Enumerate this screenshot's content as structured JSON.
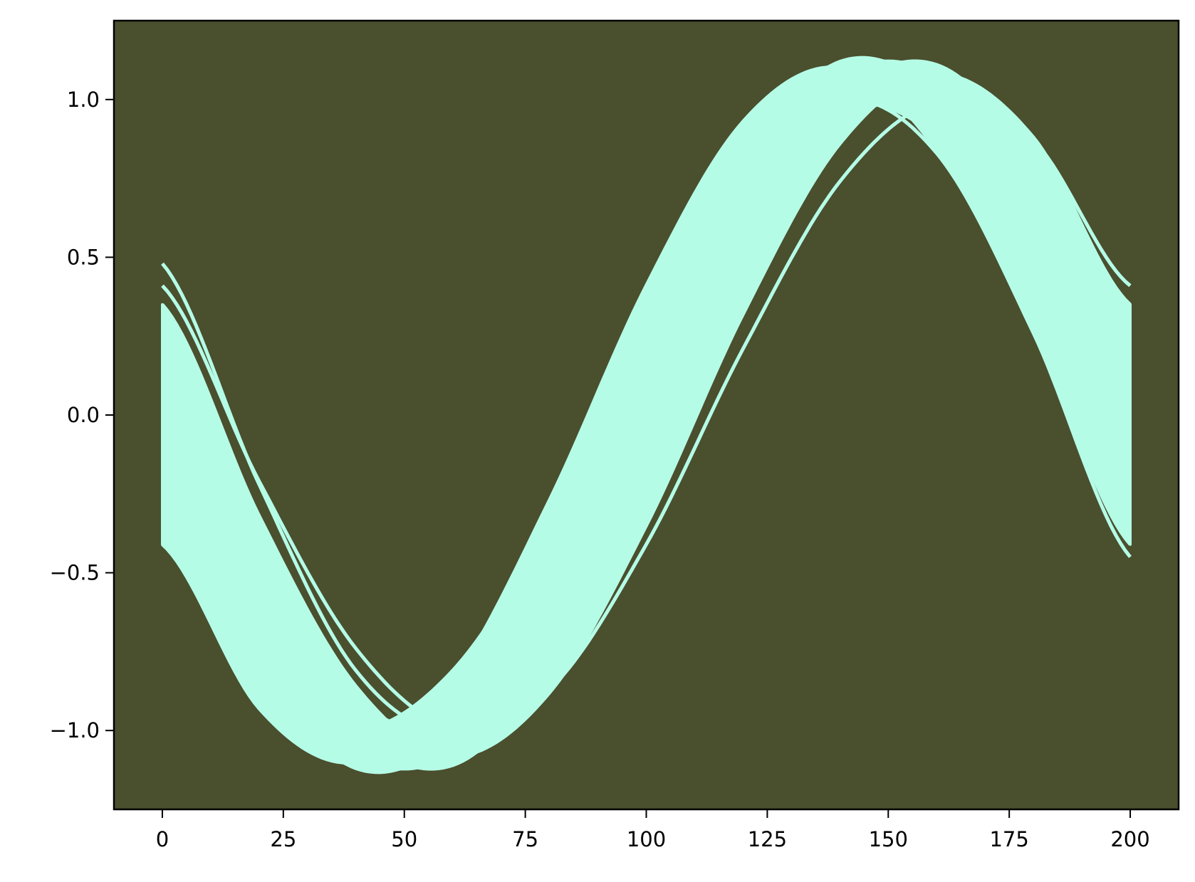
{
  "chart_data": {
    "type": "line",
    "title": "",
    "xlabel": "",
    "ylabel": "",
    "xlim": [
      -10,
      210
    ],
    "ylim": [
      -1.25,
      1.25
    ],
    "grid": false,
    "x_ticks": [
      0,
      25,
      50,
      75,
      100,
      125,
      150,
      175,
      200
    ],
    "x_tick_labels": [
      "0",
      "25",
      "50",
      "75",
      "100",
      "125",
      "150",
      "175",
      "200"
    ],
    "y_ticks": [
      -1.0,
      -0.5,
      0.0,
      0.5,
      1.0
    ],
    "y_tick_labels": [
      "−1.0",
      "−0.5",
      "0.0",
      "0.5",
      "1.0"
    ],
    "colors": {
      "background": "#4a4f2e",
      "line": "#b5fce7",
      "axes": "#000000"
    },
    "x": [
      0,
      20,
      40,
      60,
      80,
      100,
      120,
      140,
      160,
      180,
      200
    ],
    "series": [
      {
        "values": [
          0.48,
          -0.22,
          -0.81,
          -0.99,
          -0.68,
          -0.02,
          0.65,
          0.99,
          0.83,
          0.26,
          -0.45
        ]
      },
      {
        "values": [
          0.41,
          -0.21,
          -0.74,
          -0.99,
          -0.87,
          -0.41,
          0.21,
          0.74,
          0.99,
          0.87,
          0.41
        ]
      },
      {
        "values": [
          0.35,
          -0.32,
          -0.86,
          -1.08,
          -0.88,
          -0.35,
          0.32,
          0.86,
          1.08,
          0.88,
          0.35
        ]
      },
      {
        "values": [
          0.17,
          -0.52,
          -1.0,
          -1.11,
          -0.79,
          -0.17,
          0.52,
          1.0,
          1.11,
          0.79,
          0.17
        ]
      },
      {
        "values": [
          0.0,
          -0.66,
          -1.07,
          -1.07,
          -0.66,
          0.0,
          0.66,
          1.07,
          1.07,
          0.66,
          0.0
        ]
      },
      {
        "values": [
          -0.17,
          -0.79,
          -1.12,
          -1.01,
          -0.52,
          0.17,
          0.79,
          1.12,
          1.01,
          0.52,
          -0.17
        ]
      },
      {
        "values": [
          -0.41,
          -0.93,
          -1.1,
          -0.84,
          -0.27,
          0.41,
          0.93,
          1.1,
          0.84,
          0.27,
          -0.41
        ]
      },
      {
        "values": [
          -0.39,
          -0.84,
          -1.0,
          -0.81,
          -0.34,
          0.26,
          0.76,
          0.99,
          0.88,
          0.47,
          -0.12
        ]
      }
    ]
  }
}
